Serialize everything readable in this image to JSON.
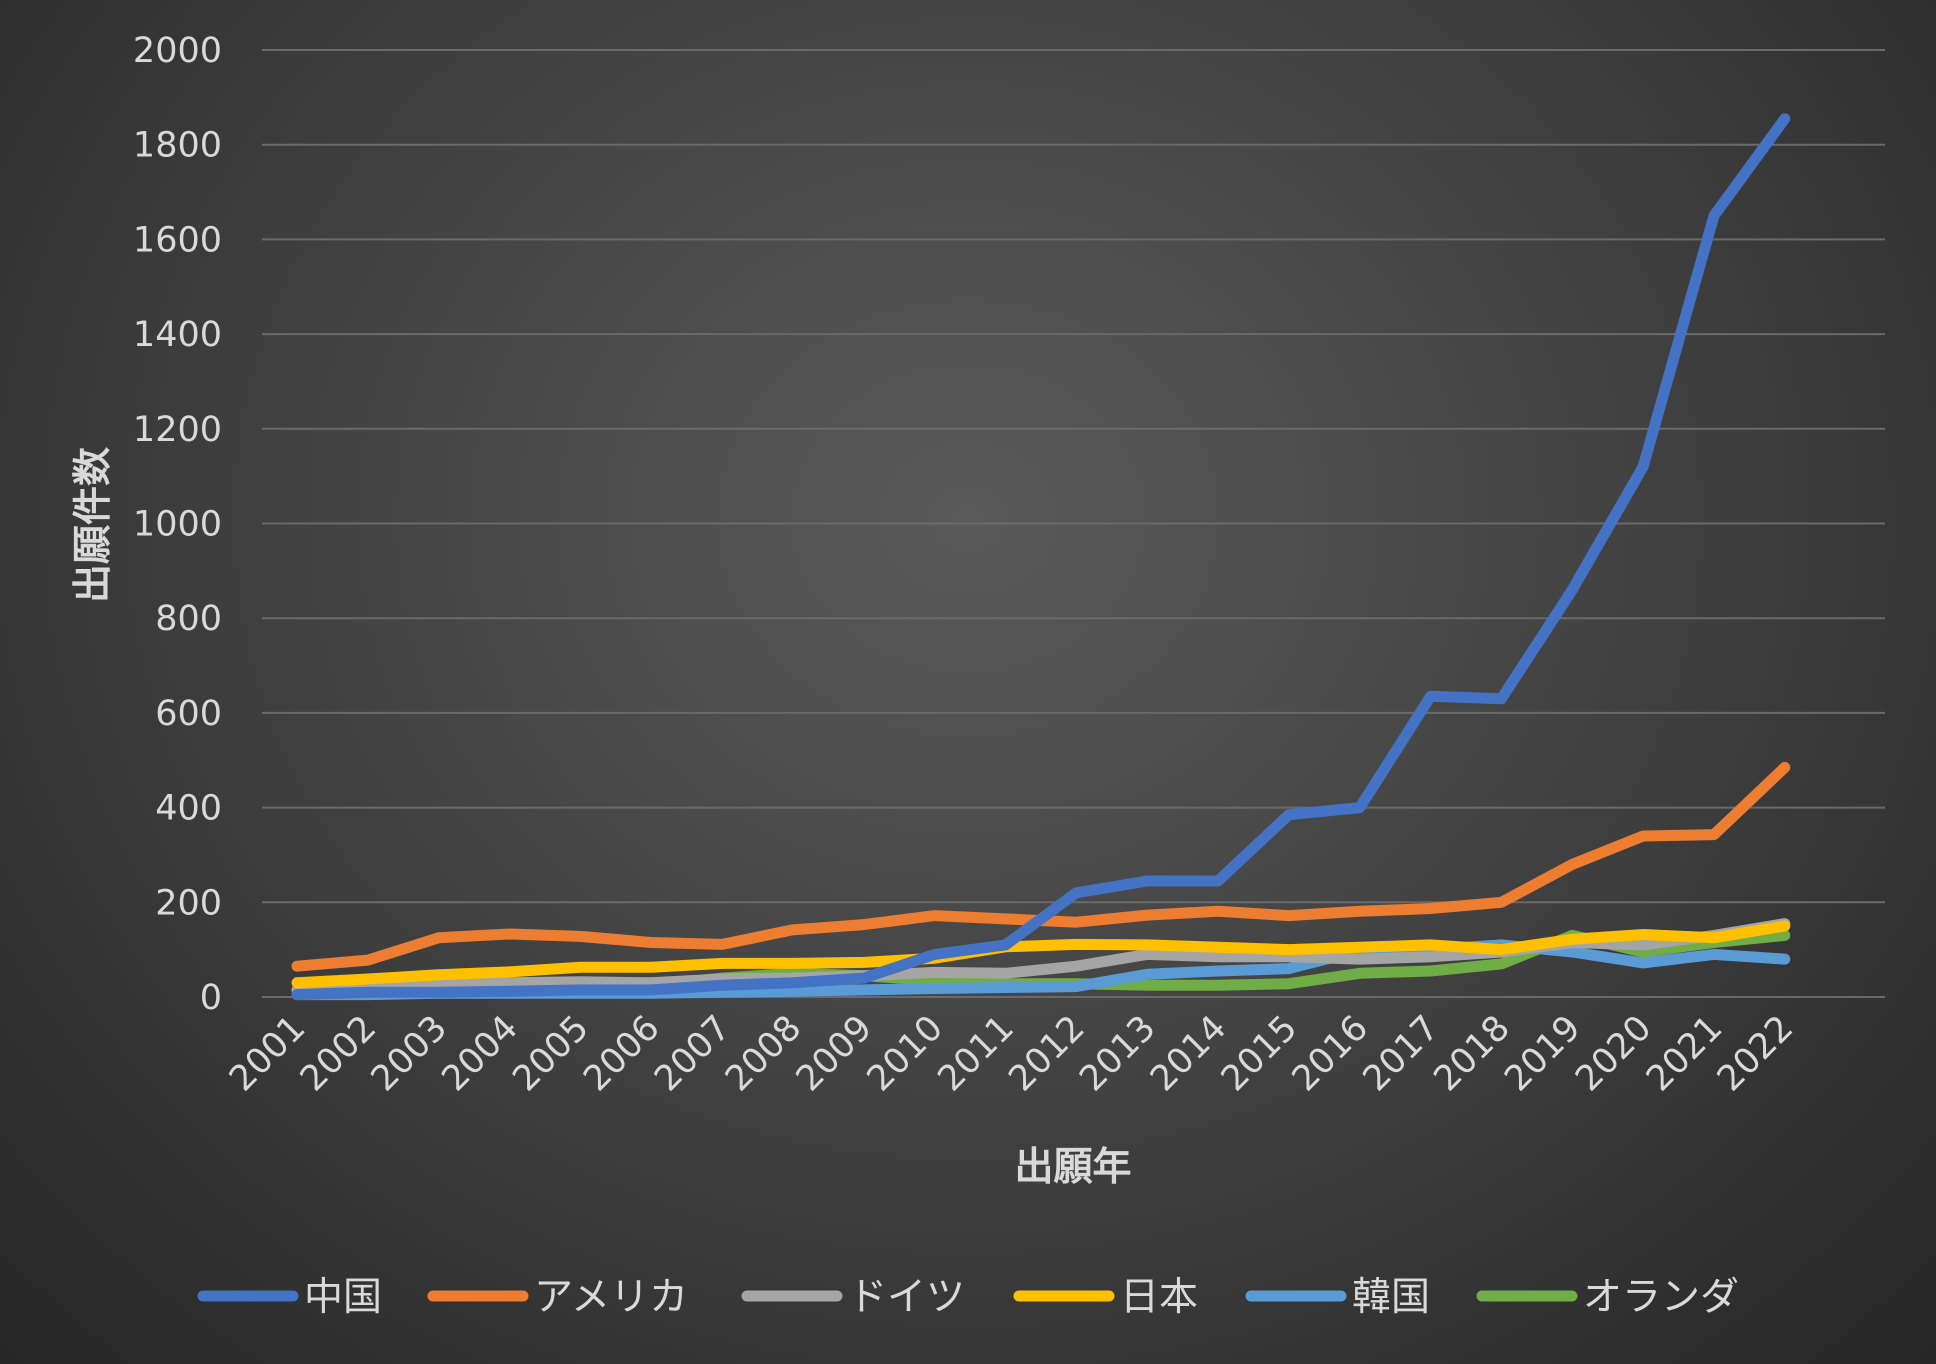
{
  "chart_data": {
    "type": "line",
    "title": "",
    "xlabel": "出願年",
    "ylabel": "出願件数",
    "ylim": [
      0,
      2000
    ],
    "yticks": [
      0,
      200,
      400,
      600,
      800,
      1000,
      1200,
      1400,
      1600,
      1800,
      2000
    ],
    "grid": true,
    "legend_position": "bottom",
    "categories": [
      "2001",
      "2002",
      "2003",
      "2004",
      "2005",
      "2006",
      "2007",
      "2008",
      "2009",
      "2010",
      "2011",
      "2012",
      "2013",
      "2014",
      "2015",
      "2016",
      "2017",
      "2018",
      "2019",
      "2020",
      "2021",
      "2022"
    ],
    "series": [
      {
        "name": "中国",
        "color": "#4472c4",
        "values": [
          5,
          10,
          10,
          12,
          15,
          15,
          25,
          30,
          40,
          90,
          110,
          220,
          245,
          245,
          385,
          400,
          635,
          630,
          860,
          1120,
          1650,
          1855
        ]
      },
      {
        "name": "アメリカ",
        "color": "#ed7d31",
        "values": [
          65,
          78,
          125,
          133,
          128,
          115,
          111,
          142,
          153,
          172,
          165,
          158,
          173,
          181,
          172,
          181,
          187,
          200,
          280,
          340,
          343,
          485
        ]
      },
      {
        "name": "ドイツ",
        "color": "#a5a5a5",
        "values": [
          15,
          25,
          28,
          30,
          32,
          30,
          38,
          40,
          45,
          52,
          50,
          65,
          90,
          85,
          85,
          80,
          85,
          95,
          115,
          110,
          130,
          155
        ]
      },
      {
        "name": "日本",
        "color": "#ffc000",
        "values": [
          30,
          38,
          47,
          53,
          63,
          63,
          71,
          71,
          73,
          82,
          106,
          111,
          110,
          105,
          100,
          105,
          110,
          100,
          122,
          132,
          125,
          150
        ]
      },
      {
        "name": "韓国",
        "color": "#5b9bd5",
        "values": [
          5,
          5,
          8,
          8,
          8,
          8,
          10,
          12,
          15,
          18,
          20,
          22,
          48,
          55,
          60,
          98,
          100,
          110,
          95,
          72,
          90,
          80
        ]
      },
      {
        "name": "オランダ",
        "color": "#70ad47",
        "values": [
          15,
          25,
          25,
          25,
          25,
          25,
          40,
          50,
          45,
          35,
          28,
          28,
          25,
          25,
          28,
          50,
          55,
          70,
          130,
          95,
          115,
          130
        ]
      }
    ]
  }
}
